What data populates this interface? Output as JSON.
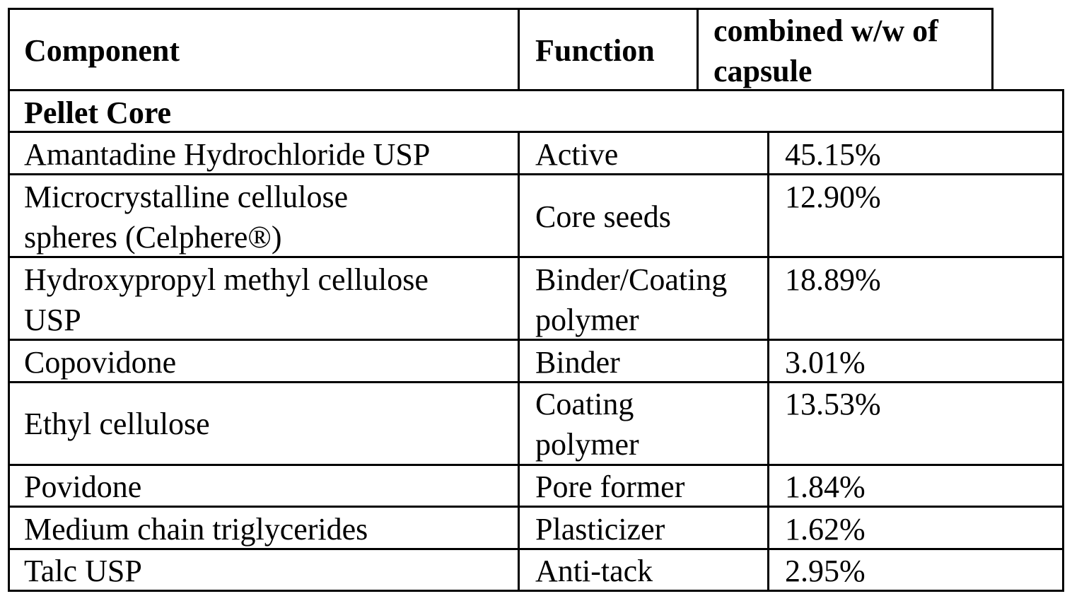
{
  "table": {
    "headers": {
      "component": "Component",
      "function": "Function",
      "combined": "combined w/w of\ncapsule"
    },
    "section_label": "Pellet Core",
    "rows": [
      {
        "component": "Amantadine Hydrochloride USP",
        "function": "Active",
        "value": "45.15%"
      },
      {
        "component": "Microcrystalline cellulose\nspheres (Celphere®)",
        "function": "Core seeds",
        "value": "12.90%"
      },
      {
        "component": "Hydroxypropyl methyl cellulose\nUSP",
        "function": "Binder/Coating\npolymer",
        "value": "18.89%"
      },
      {
        "component": "Copovidone",
        "function": "Binder",
        "value": "3.01%"
      },
      {
        "component": "Ethyl cellulose",
        "function": "Coating\npolymer",
        "value": "13.53%"
      },
      {
        "component": "Povidone",
        "function": "Pore former",
        "value": "1.84%"
      },
      {
        "component": "Medium chain triglycerides",
        "function": "Plasticizer",
        "value": "1.62%"
      },
      {
        "component": "Talc USP",
        "function": "Anti-tack",
        "value": "2.95%"
      }
    ]
  }
}
